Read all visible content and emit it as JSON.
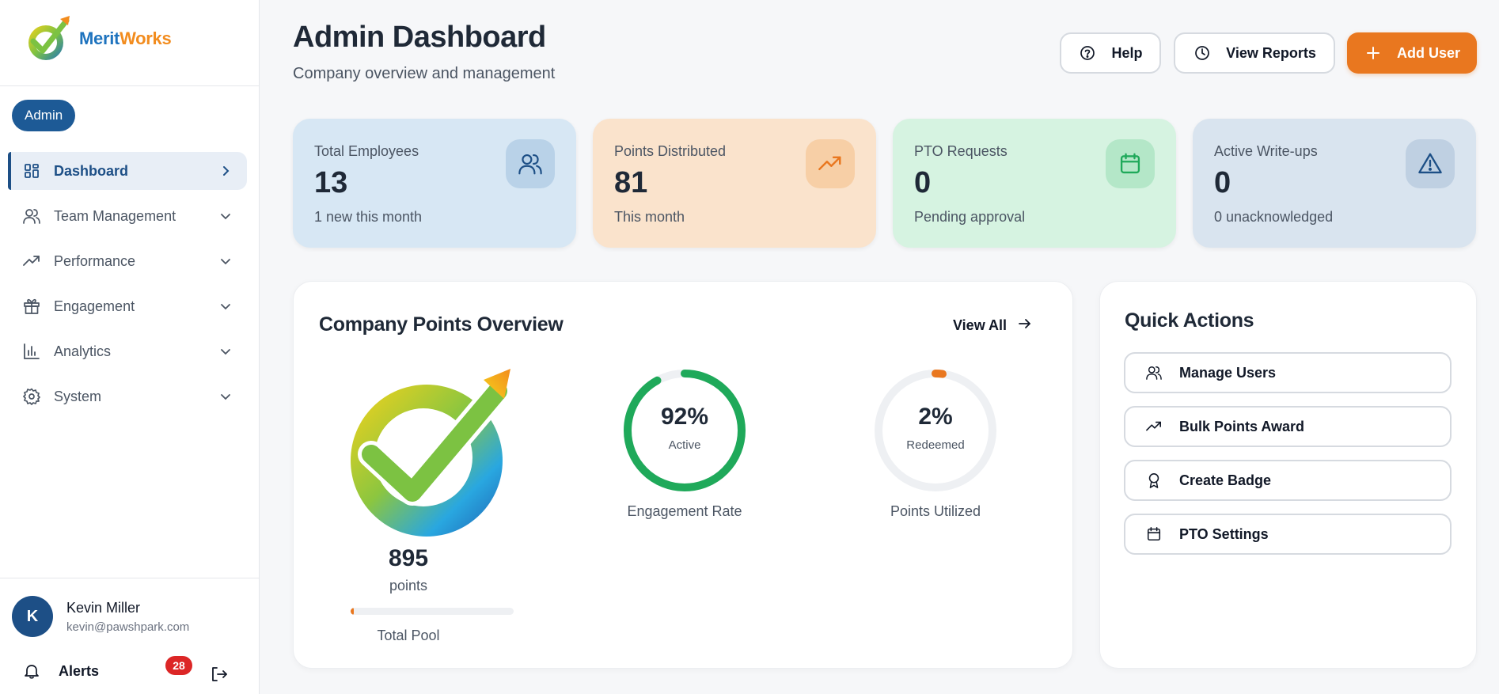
{
  "brand": {
    "name_part1": "Merit",
    "name_part2": "Works"
  },
  "sidebar": {
    "role": "Admin",
    "items": [
      {
        "label": "Dashboard",
        "icon": "grid-icon"
      },
      {
        "label": "Team Management",
        "icon": "users-icon"
      },
      {
        "label": "Performance",
        "icon": "trending-up-icon"
      },
      {
        "label": "Engagement",
        "icon": "gift-icon"
      },
      {
        "label": "Analytics",
        "icon": "bar-chart-icon"
      },
      {
        "label": "System",
        "icon": "gear-icon"
      }
    ],
    "user": {
      "initial": "K",
      "name": "Kevin Miller",
      "email": "kevin@pawshpark.com"
    },
    "alerts": {
      "label": "Alerts",
      "count": "28"
    }
  },
  "header": {
    "title": "Admin Dashboard",
    "subtitle": "Company overview and management",
    "help_label": "Help",
    "reports_label": "View Reports",
    "add_user_label": "Add User"
  },
  "stats": [
    {
      "label": "Total Employees",
      "value": "13",
      "sub": "1 new this month",
      "icon": "users-icon"
    },
    {
      "label": "Points Distributed",
      "value": "81",
      "sub": "This month",
      "icon": "trending-up-icon"
    },
    {
      "label": "PTO Requests",
      "value": "0",
      "sub": "Pending approval",
      "icon": "calendar-icon"
    },
    {
      "label": "Active Write-ups",
      "value": "0",
      "sub": "0 unacknowledged",
      "icon": "warning-icon"
    }
  ],
  "points_overview": {
    "title": "Company Points Overview",
    "view_all": "View All",
    "pool": {
      "value": "895",
      "unit": "points",
      "label": "Total Pool",
      "progress_percent": 2
    },
    "engagement": {
      "value": "92%",
      "sub": "Active",
      "label": "Engagement Rate",
      "percent": 92
    },
    "utilized": {
      "value": "2%",
      "sub": "Redeemed",
      "label": "Points Utilized",
      "percent": 2
    }
  },
  "quick_actions": {
    "title": "Quick Actions",
    "items": [
      {
        "label": "Manage Users",
        "icon": "users-icon"
      },
      {
        "label": "Bulk Points Award",
        "icon": "trending-up-icon"
      },
      {
        "label": "Create Badge",
        "icon": "award-icon"
      },
      {
        "label": "PTO Settings",
        "icon": "calendar-icon"
      }
    ]
  },
  "colors": {
    "primary": "#1d4f86",
    "accent_orange": "#e9771f",
    "success_green": "#1fa95a",
    "alert_red": "#dc2626"
  }
}
